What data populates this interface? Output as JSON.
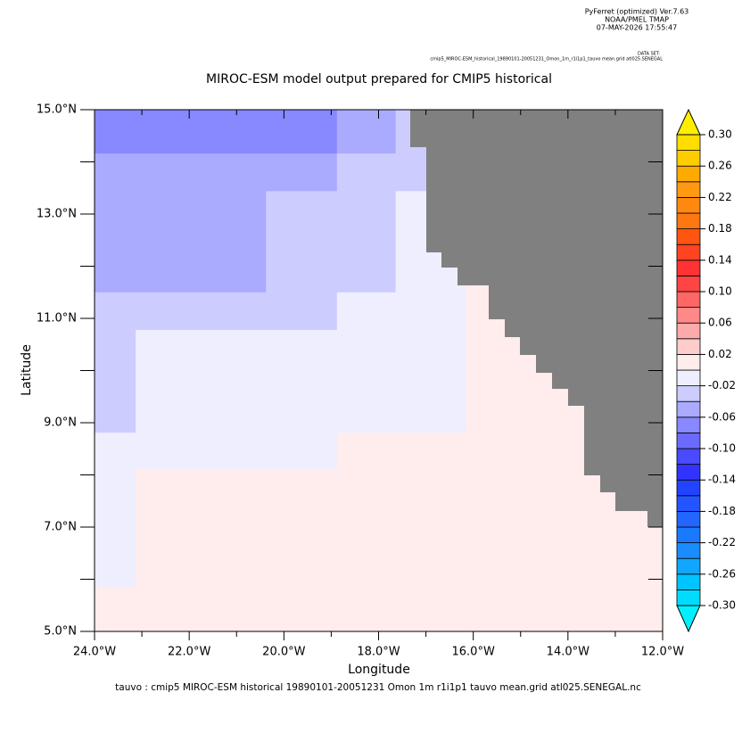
{
  "chart_data": {
    "type": "heatmap",
    "header": [
      "PyFerret (optimized) Ver.7.63",
      "NOAA/PMEL TMAP",
      "07-MAY-2026 17:55:47"
    ],
    "dataset": [
      "DATA SET:",
      "cmip5_MIROC-ESM_historical_19890101-20051231_Omon_1m_r1i1p1_tauvo mean.grid atl025.SENEGAL"
    ],
    "title": "MIROC-ESM model output prepared for CMIP5 historical",
    "xlabel": "Longitude",
    "ylabel": "Latitude",
    "footer": "tauvo : cmip5 MIROC-ESM historical 19890101-20051231 Omon 1m r1i1p1 tauvo mean.grid atl025.SENEGAL.nc",
    "xlim": [
      -24,
      -12
    ],
    "xticks": [
      {
        "value": -24,
        "label": "24.0°W"
      },
      {
        "value": -22,
        "label": "22.0°W"
      },
      {
        "value": -20,
        "label": "20.0°W"
      },
      {
        "value": -18,
        "label": "18.0°W"
      },
      {
        "value": -16,
        "label": "16.0°W"
      },
      {
        "value": -14,
        "label": "14.0°W"
      },
      {
        "value": -12,
        "label": "12.0°W"
      }
    ],
    "ylim": [
      5,
      15
    ],
    "yticks": [
      {
        "value": 5,
        "label": "5.0°N"
      },
      {
        "value": 7,
        "label": "7.0°N"
      },
      {
        "value": 9,
        "label": "9.0°N"
      },
      {
        "value": 11,
        "label": "11.0°N"
      },
      {
        "value": 13,
        "label": "13.0°N"
      },
      {
        "value": 15,
        "label": "15.0°N"
      }
    ],
    "cells": [
      {
        "lon": [
          -24,
          -12
        ],
        "lat": [
          5,
          15
        ],
        "value": 0.01
      },
      {
        "lon": [
          -24,
          -16.16
        ],
        "lat": [
          8.81,
          15
        ],
        "value": -0.01
      },
      {
        "lon": [
          -24,
          -18.88
        ],
        "lat": [
          8.1,
          15
        ],
        "value": -0.01
      },
      {
        "lon": [
          -24,
          -23.13
        ],
        "lat": [
          5.85,
          15
        ],
        "value": -0.01
      },
      {
        "lon": [
          -24,
          -23.13
        ],
        "lat": [
          8.81,
          15
        ],
        "value": -0.03
      },
      {
        "lon": [
          -24,
          -18.88
        ],
        "lat": [
          10.78,
          15
        ],
        "value": -0.03
      },
      {
        "lon": [
          -24,
          -17.64
        ],
        "lat": [
          11.5,
          15
        ],
        "value": -0.03
      },
      {
        "lon": [
          -24,
          -16.99
        ],
        "lat": [
          13.44,
          15
        ],
        "value": -0.03
      },
      {
        "lon": [
          -24,
          -17.33
        ],
        "lat": [
          14.28,
          15
        ],
        "value": -0.03
      },
      {
        "lon": [
          -24,
          -20.38
        ],
        "lat": [
          11.5,
          15
        ],
        "value": -0.05
      },
      {
        "lon": [
          -24,
          -18.88
        ],
        "lat": [
          13.44,
          15
        ],
        "value": -0.05
      },
      {
        "lon": [
          -24,
          -17.64
        ],
        "lat": [
          14.16,
          15
        ],
        "value": -0.05
      },
      {
        "lon": [
          -24,
          -18.88
        ],
        "lat": [
          14.16,
          15
        ],
        "value": -0.07
      }
    ],
    "levels": [
      -0.3,
      -0.28,
      -0.26,
      -0.24,
      -0.22,
      -0.2,
      -0.18,
      -0.16,
      -0.14,
      -0.12,
      -0.1,
      -0.08,
      -0.06,
      -0.04,
      -0.02,
      0,
      0.02,
      0.04,
      0.06,
      0.08,
      0.1,
      0.12,
      0.14,
      0.16,
      0.18,
      0.2,
      0.22,
      0.24,
      0.26,
      0.28,
      0.3
    ],
    "colors": [
      "#00dcff",
      "#00c4ff",
      "#11a6ff",
      "#1a8cff",
      "#1a7aff",
      "#2266ff",
      "#2255ff",
      "#2244ff",
      "#3333ff",
      "#4a4aff",
      "#6a6aff",
      "#8888ff",
      "#aaaaff",
      "#ccccff",
      "#eeeeff",
      "#ffecec",
      "#ffcccc",
      "#ffaaaa",
      "#ff8888",
      "#ff6666",
      "#ff4444",
      "#ff3333",
      "#ff4422",
      "#ff5511",
      "#ff7711",
      "#ff8811",
      "#ff9911",
      "#ffaa00",
      "#ffcc00",
      "#ffdd00"
    ],
    "over_color": "#ffee00",
    "under_color": "#00f0ff",
    "land_color": "#808080",
    "cbticks": [
      {
        "value": 0.3,
        "label": "0.30"
      },
      {
        "value": 0.26,
        "label": "0.26"
      },
      {
        "value": 0.22,
        "label": "0.22"
      },
      {
        "value": 0.18,
        "label": "0.18"
      },
      {
        "value": 0.14,
        "label": "0.14"
      },
      {
        "value": 0.1,
        "label": "0.10"
      },
      {
        "value": 0.06,
        "label": "0.06"
      },
      {
        "value": 0.02,
        "label": "0.02"
      },
      {
        "value": -0.02,
        "label": "-0.02"
      },
      {
        "value": -0.06,
        "label": "-0.06"
      },
      {
        "value": -0.1,
        "label": "-0.10"
      },
      {
        "value": -0.14,
        "label": "-0.14"
      },
      {
        "value": -0.18,
        "label": "-0.18"
      },
      {
        "value": -0.22,
        "label": "-0.22"
      },
      {
        "value": -0.26,
        "label": "-0.26"
      },
      {
        "value": -0.3,
        "label": "-0.30"
      }
    ]
  }
}
